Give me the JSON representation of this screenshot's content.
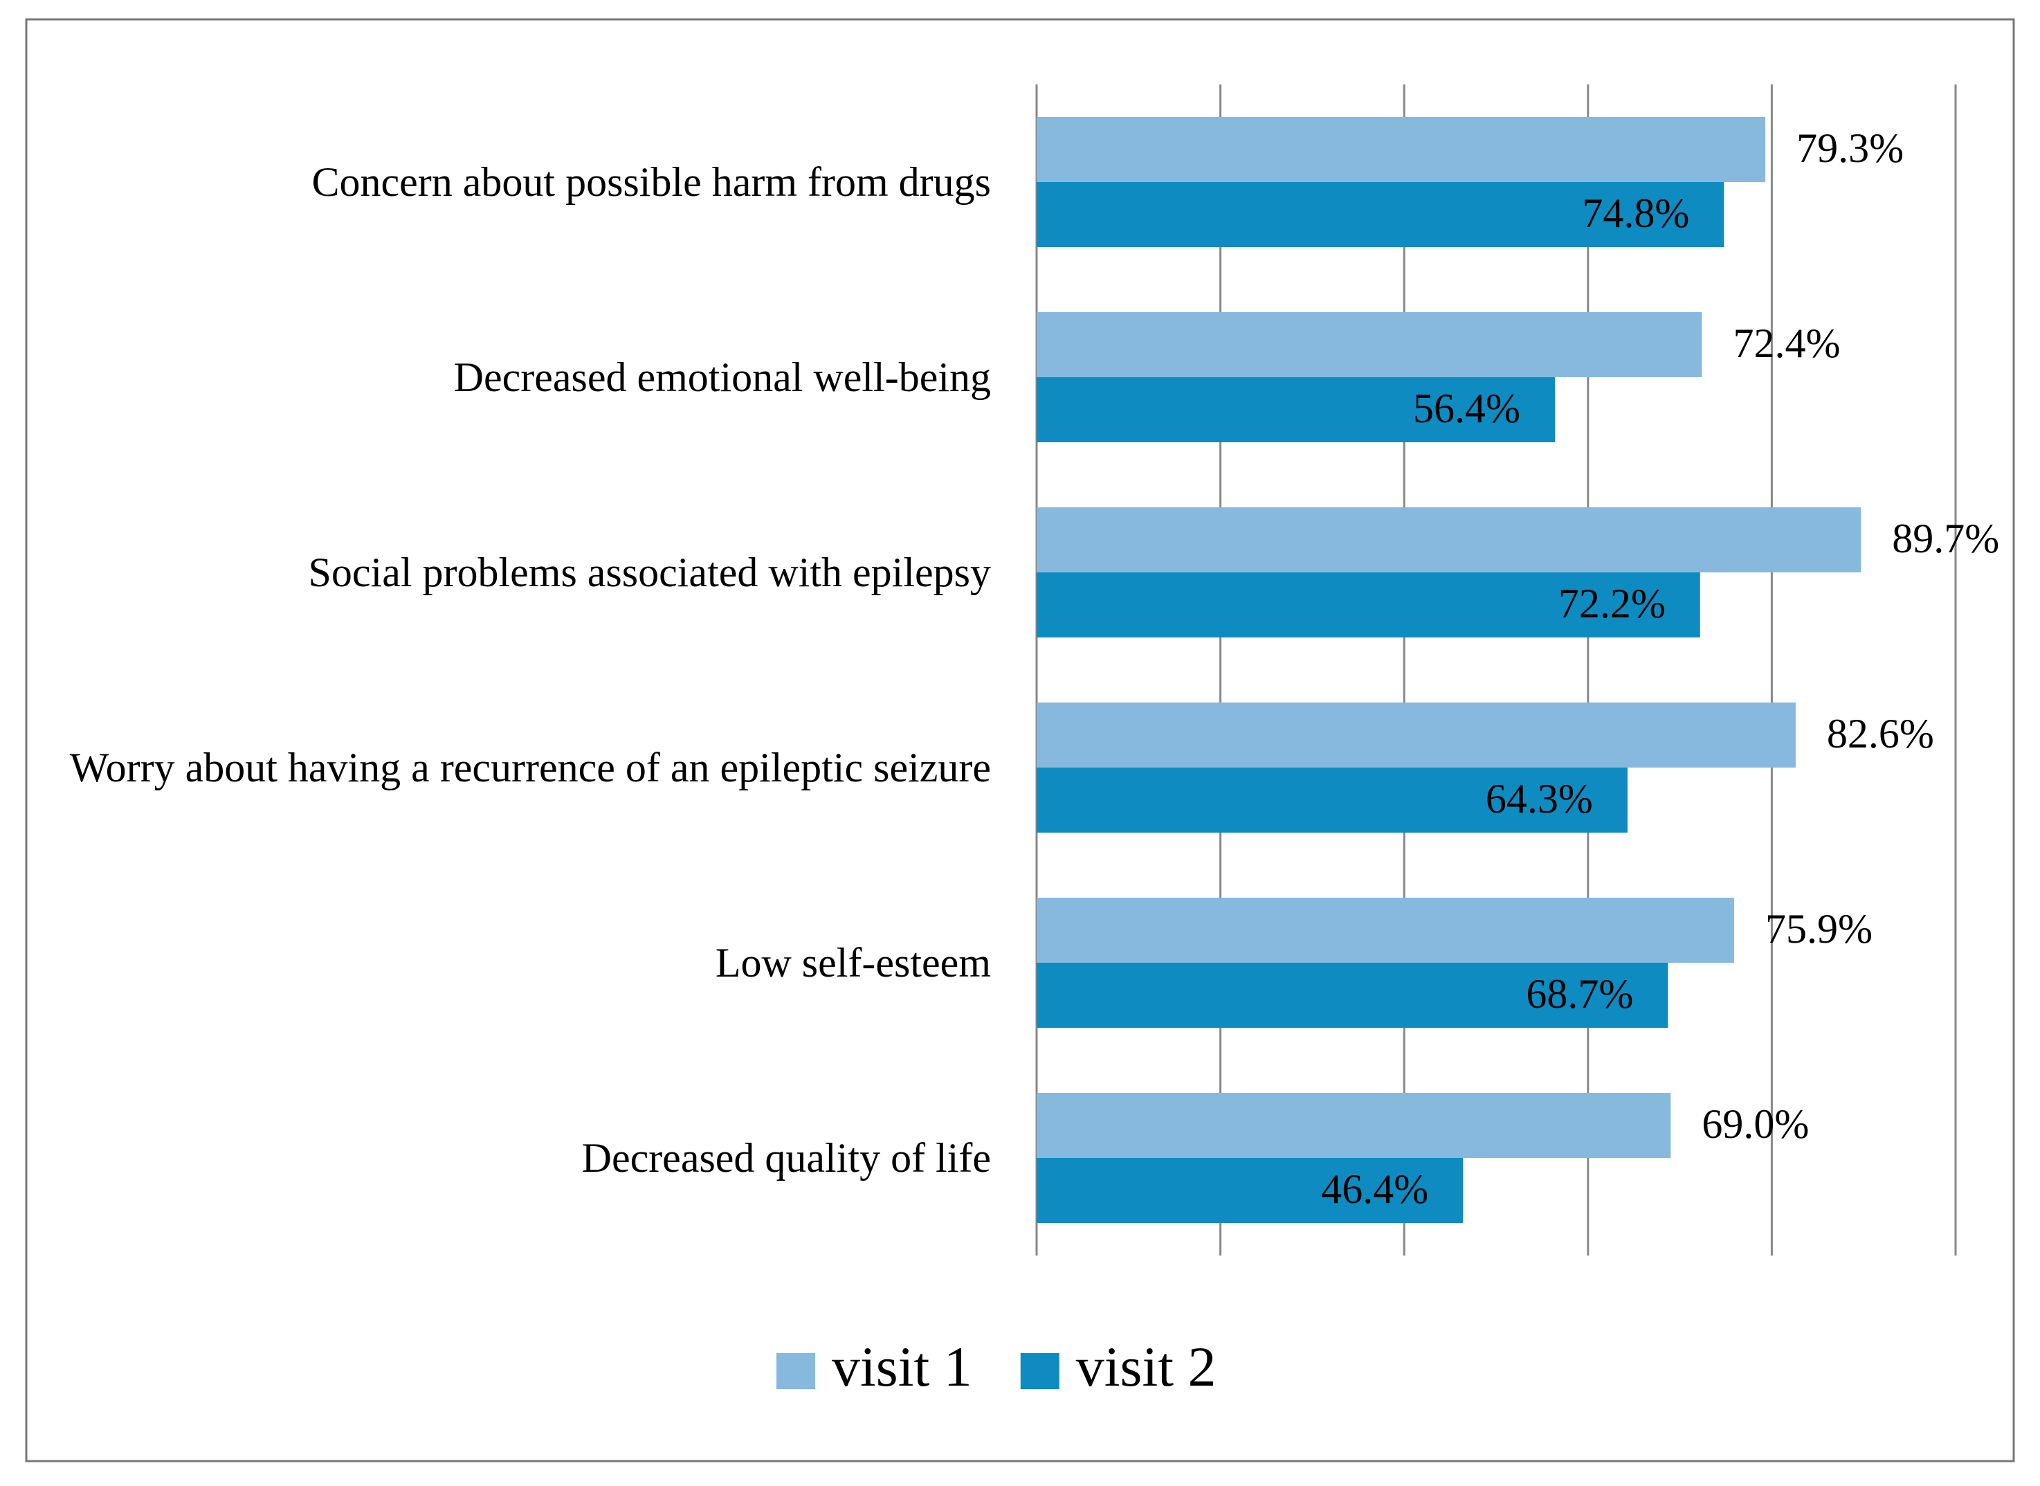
{
  "chart_data": {
    "type": "hbar",
    "categories": [
      "Concern about possible harm from drugs",
      "Decreased emotional well-being",
      "Social problems associated with epilepsy",
      "Worry about having a recurrence of an epileptic seizure",
      "Low self-esteem",
      "Decreased quality of life"
    ],
    "series": [
      {
        "name": "visit 1",
        "color": "#87b9df",
        "values": [
          79.3,
          72.4,
          89.7,
          82.6,
          75.9,
          69.0
        ],
        "value_labels": [
          "79.3%",
          "72.4%",
          "89.7%",
          "82.6%",
          "75.9%",
          "69.0%"
        ]
      },
      {
        "name": "visit 2",
        "color": "#0e8bc0",
        "values": [
          74.8,
          56.4,
          72.2,
          64.3,
          68.7,
          46.4
        ],
        "value_labels": [
          "74.8%",
          "56.4%",
          "72.2%",
          "64.3%",
          "68.7%",
          "46.4%"
        ]
      }
    ],
    "xlim": [
      0,
      100
    ],
    "xticks": [
      0,
      20,
      40,
      60,
      80,
      100
    ],
    "grid": true,
    "legend": "bottom"
  }
}
